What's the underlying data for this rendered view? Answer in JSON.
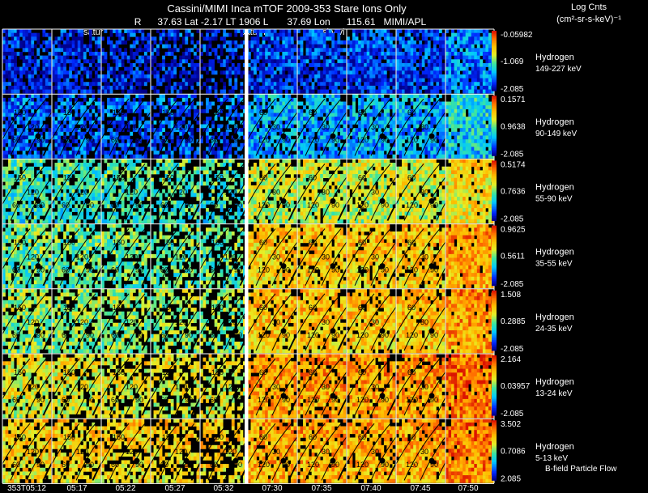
{
  "header": {
    "line1": "Cassini/MIMI Inca mTOF  2009-353   Stare    Ions Only",
    "line2": "R      37.63 Lat -2.17 LT 1906 L       37.69 Lon      115.61   MIMI/APL",
    "left_label": "satur",
    "mid_label": "saturn",
    "mid_label2": "sky vi"
  },
  "units": {
    "line1": "Log Cnts",
    "line2": "(cm²-sr-s-keV)⁻¹"
  },
  "footer_note": "B-field Particle Flow",
  "colors": {
    "background": "#000000",
    "grid": "#ffffff",
    "contour": "#000000"
  },
  "chart_data": {
    "type": "heatmap",
    "title": "Cassini/MIMI Inca mTOF 2009-353 Stare Ions Only",
    "x_tick_labels": [
      "353T05:12",
      "05:17",
      "05:22",
      "05:27",
      "05:32",
      "07:30",
      "07:35",
      "07:40",
      "07:45",
      "07:50"
    ],
    "columns_per_group": [
      5,
      5
    ],
    "contour_levels": [
      30,
      60,
      90,
      120,
      150
    ],
    "rows": [
      {
        "species": "Hydrogen",
        "energy": "149-227 keV",
        "cb_max": "-0.05982",
        "cb_mid": "-1.069",
        "cb_min": "-2.085",
        "level_left": 0.12,
        "level_right": 0.16,
        "contours": false
      },
      {
        "species": "Hydrogen",
        "energy": "90-149 keV",
        "cb_max": "0.1571",
        "cb_mid": "0.9638",
        "cb_min": "-2.085",
        "level_left": 0.2,
        "level_right": 0.3,
        "contours": true
      },
      {
        "species": "Hydrogen",
        "energy": "55-90 keV",
        "cb_max": "0.5174",
        "cb_mid": "0.7636",
        "cb_min": "-2.085",
        "level_left": 0.45,
        "level_right": 0.62,
        "contours": true
      },
      {
        "species": "Hydrogen",
        "energy": "35-55 keV",
        "cb_max": "0.9625",
        "cb_mid": "0.5611",
        "cb_min": "-2.085",
        "level_left": 0.5,
        "level_right": 0.74,
        "contours": true
      },
      {
        "species": "Hydrogen",
        "energy": "24-35 keV",
        "cb_max": "1.508",
        "cb_mid": "0.2885",
        "cb_min": "-2.085",
        "level_left": 0.55,
        "level_right": 0.75,
        "contours": true
      },
      {
        "species": "Hydrogen",
        "energy": "13-24 keV",
        "cb_max": "2.164",
        "cb_mid": "0.03957",
        "cb_min": "-2.085",
        "level_left": 0.66,
        "level_right": 0.82,
        "contours": true
      },
      {
        "species": "Hydrogen",
        "energy": "5-13 keV",
        "cb_max": "3.502",
        "cb_mid": "0.7086",
        "cb_min": "2.085",
        "level_left": 0.72,
        "level_right": 0.8,
        "contours": true
      }
    ]
  }
}
